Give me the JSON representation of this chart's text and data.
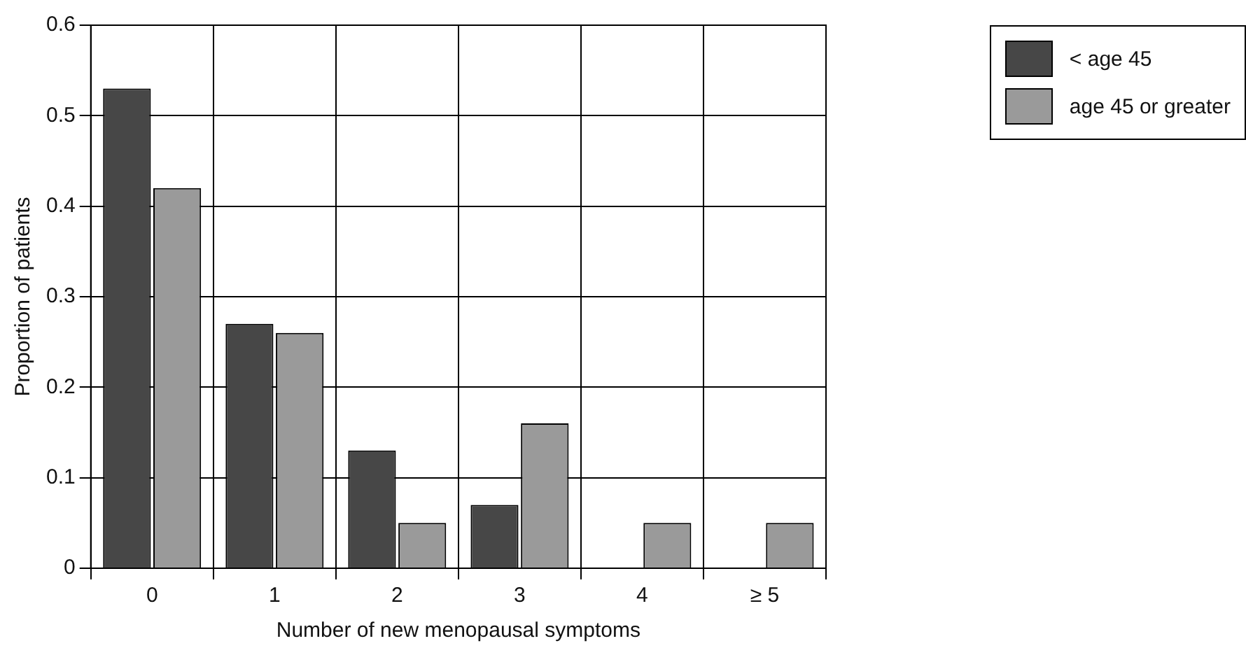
{
  "chart_data": {
    "type": "bar",
    "xlabel": "Number of new menopausal symptoms",
    "ylabel": "Proportion of patients",
    "categories": [
      "0",
      "1",
      "2",
      "3",
      "4",
      "≥ 5"
    ],
    "series": [
      {
        "name": "< age 45",
        "color": "#474747",
        "values": [
          0.53,
          0.27,
          0.13,
          0.07,
          0,
          0
        ]
      },
      {
        "name": "age 45 or greater",
        "color": "#9a9a9a",
        "values": [
          0.42,
          0.26,
          0.05,
          0.16,
          0.05,
          0.05
        ]
      }
    ],
    "ylim": [
      0,
      0.6
    ],
    "yticks": [
      0,
      0.1,
      0.2,
      0.3,
      0.4,
      0.5,
      0.6
    ],
    "grid": true,
    "legend": "top right"
  }
}
